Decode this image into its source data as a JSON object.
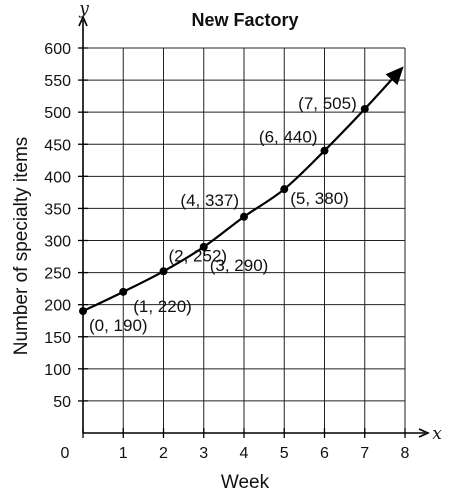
{
  "chart_data": {
    "type": "line",
    "title": "New Factory",
    "xlabel": "Week",
    "ylabel": "Number of specialty items",
    "x_var": "x",
    "y_var": "y",
    "xlim": [
      0,
      8
    ],
    "ylim": [
      0,
      600
    ],
    "x_ticks": [
      0,
      1,
      2,
      3,
      4,
      5,
      6,
      7,
      8
    ],
    "y_ticks": [
      50,
      100,
      150,
      200,
      250,
      300,
      350,
      400,
      450,
      500,
      550,
      600
    ],
    "grid": true,
    "series": [
      {
        "x": [
          0,
          1,
          2,
          3,
          4,
          5,
          6,
          7
        ],
        "y": [
          190,
          220,
          252,
          290,
          337,
          380,
          440,
          505
        ],
        "point_labels": [
          "(0, 190)",
          "(1, 220)",
          "(2, 252)",
          "(3, 290)",
          "(4, 337)",
          "(5, 380)",
          "(6, 440)",
          "(7, 505)"
        ]
      }
    ],
    "arrow_end": true,
    "line_color": "#000000"
  }
}
